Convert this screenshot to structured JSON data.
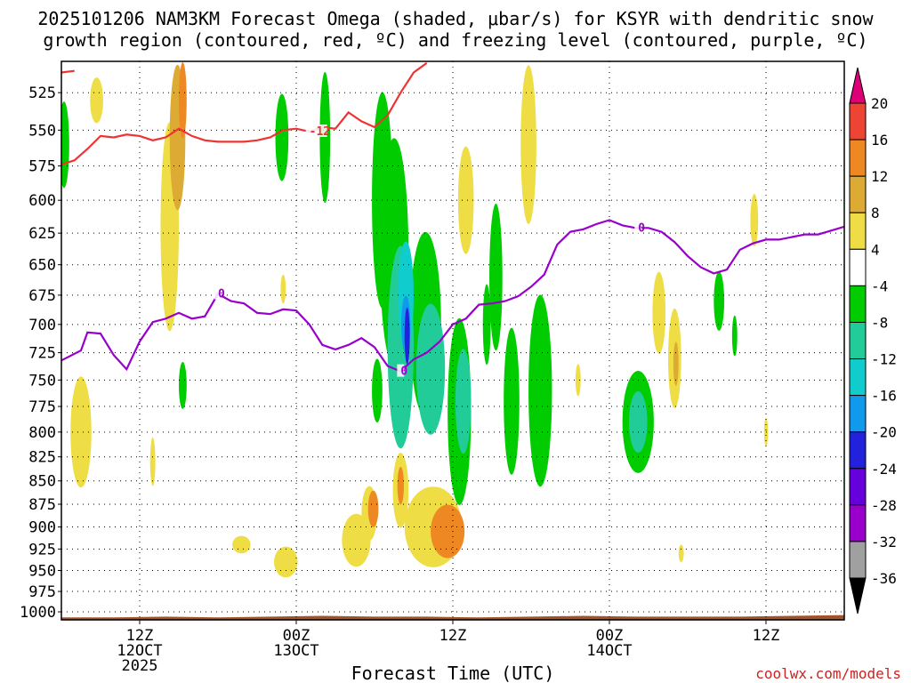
{
  "title_line1": "2025101206 NAM3KM Forecast Omega (shaded, μbar/s) for KSYR with dendritic snow",
  "title_line2": "growth region (contoured, red, ºC) and freezing level (contoured, purple, ºC)",
  "credit": "coolwx.com/models",
  "chart_data": {
    "type": "heatmap",
    "title": "2025101206 NAM3KM Forecast Omega (shaded, μbar/s) for KSYR with dendritic snow growth region (contoured, red, ºC) and freezing level (contoured, purple, ºC)",
    "xlabel": "Forecast Time (UTC)",
    "ylabel": "",
    "x_range_hours": [
      0,
      60
    ],
    "y_range_mb": [
      505,
      1010
    ],
    "y_scale": "log-pressure",
    "y_ticks": [
      525,
      550,
      575,
      600,
      625,
      650,
      675,
      700,
      725,
      750,
      775,
      800,
      825,
      850,
      875,
      900,
      925,
      950,
      975,
      1000
    ],
    "x_ticks": [
      {
        "hour": 6,
        "lines": [
          "12Z",
          "12OCT",
          "2025"
        ]
      },
      {
        "hour": 18,
        "lines": [
          "00Z",
          "13OCT"
        ]
      },
      {
        "hour": 30,
        "lines": [
          "12Z"
        ]
      },
      {
        "hour": 42,
        "lines": [
          "00Z",
          "14OCT"
        ]
      },
      {
        "hour": 54,
        "lines": [
          "12Z"
        ]
      }
    ],
    "grid": true,
    "colorbar": {
      "levels": [
        -36,
        -32,
        -28,
        -24,
        -20,
        -16,
        -12,
        -8,
        -4,
        4,
        8,
        12,
        16,
        20
      ],
      "colors": [
        "#000000",
        "#a0a0a0",
        "#9900cc",
        "#6600dd",
        "#2222dd",
        "#1199ee",
        "#11cccc",
        "#22cc99",
        "#00cc00",
        "#ffffff",
        "#eedd44",
        "#ddaa33",
        "#ee8822",
        "#ee4433",
        "#dd0077"
      ]
    },
    "omega_blobs": [
      {
        "t": 0.2,
        "p": 560,
        "rt": 0.4,
        "rp": 30,
        "value": -6
      },
      {
        "t": 2.7,
        "p": 530,
        "rt": 0.5,
        "rp": 15,
        "value": 6
      },
      {
        "t": 1.5,
        "p": 800,
        "rt": 0.8,
        "rp": 55,
        "value": 6
      },
      {
        "t": 7.0,
        "p": 830,
        "rt": 0.2,
        "rp": 25,
        "value": 6
      },
      {
        "t": 8.3,
        "p": 620,
        "rt": 0.7,
        "rp": 80,
        "value": 6
      },
      {
        "t": 8.9,
        "p": 555,
        "rt": 0.6,
        "rp": 50,
        "value": 10
      },
      {
        "t": 9.3,
        "p": 530,
        "rt": 0.3,
        "rp": 25,
        "value": 14
      },
      {
        "t": 9.3,
        "p": 755,
        "rt": 0.3,
        "rp": 22,
        "value": -6
      },
      {
        "t": 13.8,
        "p": 920,
        "rt": 0.7,
        "rp": 10,
        "value": 6
      },
      {
        "t": 16.9,
        "p": 555,
        "rt": 0.5,
        "rp": 30,
        "value": -6
      },
      {
        "t": 17.0,
        "p": 670,
        "rt": 0.2,
        "rp": 12,
        "value": 6
      },
      {
        "t": 17.2,
        "p": 940,
        "rt": 0.9,
        "rp": 18,
        "value": 6
      },
      {
        "t": 20.2,
        "p": 555,
        "rt": 0.4,
        "rp": 45,
        "value": -6
      },
      {
        "t": 22.6,
        "p": 915,
        "rt": 1.1,
        "rp": 30,
        "value": 6
      },
      {
        "t": 23.6,
        "p": 885,
        "rt": 0.6,
        "rp": 30,
        "value": 6
      },
      {
        "t": 23.9,
        "p": 880,
        "rt": 0.4,
        "rp": 20,
        "value": 12
      },
      {
        "t": 24.6,
        "p": 600,
        "rt": 0.8,
        "rp": 80,
        "value": -6
      },
      {
        "t": 24.2,
        "p": 760,
        "rt": 0.4,
        "rp": 30,
        "value": -6
      },
      {
        "t": 25.5,
        "p": 640,
        "rt": 1.1,
        "rp": 90,
        "value": -6
      },
      {
        "t": 26.0,
        "p": 720,
        "rt": 1.0,
        "rp": 90,
        "value": -10
      },
      {
        "t": 26.4,
        "p": 675,
        "rt": 0.6,
        "rp": 45,
        "value": -14
      },
      {
        "t": 26.4,
        "p": 700,
        "rt": 0.35,
        "rp": 25,
        "value": -18
      },
      {
        "t": 26.5,
        "p": 710,
        "rt": 0.2,
        "rp": 25,
        "value": -24
      },
      {
        "t": 26.0,
        "p": 860,
        "rt": 0.6,
        "rp": 40,
        "value": 6
      },
      {
        "t": 26.0,
        "p": 855,
        "rt": 0.25,
        "rp": 20,
        "value": 12
      },
      {
        "t": 27.9,
        "p": 700,
        "rt": 1.2,
        "rp": 80,
        "value": -6
      },
      {
        "t": 28.3,
        "p": 740,
        "rt": 1.1,
        "rp": 60,
        "value": -10
      },
      {
        "t": 28.5,
        "p": 900,
        "rt": 2.2,
        "rp": 45,
        "value": 6
      },
      {
        "t": 29.6,
        "p": 905,
        "rt": 1.3,
        "rp": 30,
        "value": 12
      },
      {
        "t": 30.5,
        "p": 780,
        "rt": 0.9,
        "rp": 90,
        "value": -6
      },
      {
        "t": 30.8,
        "p": 770,
        "rt": 0.6,
        "rp": 50,
        "value": -10
      },
      {
        "t": 31.0,
        "p": 600,
        "rt": 0.6,
        "rp": 40,
        "value": 6
      },
      {
        "t": 32.6,
        "p": 700,
        "rt": 0.3,
        "rp": 35,
        "value": -6
      },
      {
        "t": 33.3,
        "p": 660,
        "rt": 0.5,
        "rp": 60,
        "value": -6
      },
      {
        "t": 34.5,
        "p": 770,
        "rt": 0.6,
        "rp": 70,
        "value": -6
      },
      {
        "t": 35.8,
        "p": 560,
        "rt": 0.6,
        "rp": 55,
        "value": 6
      },
      {
        "t": 36.7,
        "p": 760,
        "rt": 0.9,
        "rp": 90,
        "value": -6
      },
      {
        "t": 39.6,
        "p": 750,
        "rt": 0.2,
        "rp": 15,
        "value": 6
      },
      {
        "t": 44.2,
        "p": 790,
        "rt": 1.2,
        "rp": 50,
        "value": -6
      },
      {
        "t": 44.2,
        "p": 790,
        "rt": 0.7,
        "rp": 30,
        "value": -10
      },
      {
        "t": 45.8,
        "p": 690,
        "rt": 0.5,
        "rp": 35,
        "value": 6
      },
      {
        "t": 47.0,
        "p": 730,
        "rt": 0.5,
        "rp": 45,
        "value": 6
      },
      {
        "t": 47.1,
        "p": 735,
        "rt": 0.2,
        "rp": 20,
        "value": 10
      },
      {
        "t": 47.5,
        "p": 930,
        "rt": 0.2,
        "rp": 10,
        "value": 6
      },
      {
        "t": 50.4,
        "p": 680,
        "rt": 0.4,
        "rp": 25,
        "value": -6
      },
      {
        "t": 51.6,
        "p": 710,
        "rt": 0.2,
        "rp": 18,
        "value": -6
      },
      {
        "t": 53.1,
        "p": 615,
        "rt": 0.3,
        "rp": 20,
        "value": 6
      },
      {
        "t": 54.0,
        "p": 800,
        "rt": 0.15,
        "rp": 14,
        "value": 6
      }
    ],
    "freezing_level_0C": {
      "label": "0",
      "points": [
        [
          0,
          732
        ],
        [
          1.5,
          723
        ],
        [
          2,
          707
        ],
        [
          3,
          708
        ],
        [
          4,
          727
        ],
        [
          5,
          740
        ],
        [
          6,
          715
        ],
        [
          7,
          698
        ],
        [
          8,
          695
        ],
        [
          9,
          690
        ],
        [
          10,
          695
        ],
        [
          11,
          693
        ],
        [
          12,
          674
        ],
        [
          13,
          680
        ],
        [
          14,
          682
        ],
        [
          15,
          690
        ],
        [
          16,
          691
        ],
        [
          17,
          687
        ],
        [
          18,
          688
        ],
        [
          19,
          700
        ],
        [
          20,
          718
        ],
        [
          21,
          722
        ],
        [
          22,
          718
        ],
        [
          23,
          712
        ],
        [
          24,
          720
        ],
        [
          25,
          737
        ],
        [
          26,
          742
        ],
        [
          27,
          731
        ],
        [
          28,
          725
        ],
        [
          29,
          715
        ],
        [
          30,
          700
        ],
        [
          31,
          695
        ],
        [
          32,
          683
        ],
        [
          33,
          682
        ],
        [
          34,
          680
        ],
        [
          35,
          676
        ],
        [
          36,
          668
        ],
        [
          37,
          658
        ],
        [
          38,
          634
        ],
        [
          39,
          624
        ],
        [
          40,
          622
        ],
        [
          41,
          618
        ],
        [
          42,
          615
        ],
        [
          43,
          619
        ],
        [
          44,
          621
        ],
        [
          45,
          621
        ],
        [
          46,
          624
        ],
        [
          47,
          632
        ],
        [
          48,
          643
        ],
        [
          49,
          652
        ],
        [
          50,
          657
        ],
        [
          51,
          654
        ],
        [
          52,
          638
        ],
        [
          53,
          633
        ],
        [
          54,
          630
        ],
        [
          55,
          630
        ],
        [
          56,
          628
        ],
        [
          57,
          626
        ],
        [
          58,
          626
        ],
        [
          59,
          623
        ],
        [
          60,
          620
        ]
      ]
    },
    "dgz_minus12C": {
      "label": "-12",
      "points": [
        [
          0,
          574
        ],
        [
          1,
          571
        ],
        [
          2,
          563
        ],
        [
          3,
          554
        ],
        [
          4,
          555
        ],
        [
          5,
          553
        ],
        [
          6,
          554
        ],
        [
          7,
          557
        ],
        [
          8,
          555
        ],
        [
          9,
          549
        ],
        [
          10,
          554
        ],
        [
          11,
          557
        ],
        [
          12,
          558
        ],
        [
          13,
          558
        ],
        [
          14,
          558
        ],
        [
          15,
          557
        ],
        [
          16,
          555
        ],
        [
          17,
          550
        ],
        [
          18,
          549
        ],
        [
          19,
          551
        ],
        [
          20,
          548
        ],
        [
          21,
          549
        ],
        [
          22,
          538
        ],
        [
          23,
          544
        ],
        [
          24,
          548
        ],
        [
          25,
          540
        ],
        [
          26,
          525
        ],
        [
          27,
          512
        ],
        [
          28,
          506
        ]
      ]
    },
    "dgz_minus12C_top": {
      "points": [
        [
          0,
          512
        ],
        [
          1,
          511
        ]
      ]
    },
    "surface_pressure_mb": [
      1007,
      1007,
      1006,
      1007,
      1006,
      1005,
      1006,
      1006,
      1007,
      1006,
      1005,
      1006,
      1006,
      1006,
      1005,
      1004
    ]
  }
}
